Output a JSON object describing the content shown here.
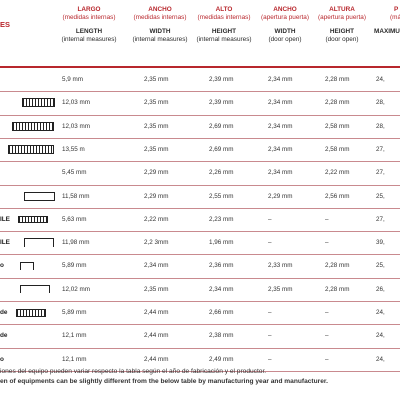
{
  "header": {
    "row_label": "ES",
    "columns": [
      {
        "es": "LARGO",
        "es_sub": "(medidas internas)",
        "en": "LENGTH",
        "en_sub": "(internal measures)"
      },
      {
        "es": "ANCHO",
        "es_sub": "(medidas internas)",
        "en": "WIDTH",
        "en_sub": "(internal measures)"
      },
      {
        "es": "ALTO",
        "es_sub": "(medidas internas)",
        "en": "HEIGHT",
        "en_sub": "(internal measures)"
      },
      {
        "es": "ANCHO",
        "es_sub": "(apertura puerta)",
        "en": "WIDTH",
        "en_sub": "(door open)"
      },
      {
        "es": "ALTURA",
        "es_sub": "(apertura puerta)",
        "en": "HEIGHT",
        "en_sub": "(door open)"
      },
      {
        "es": "P",
        "es_sub": "(má",
        "en": "MAXIMUN",
        "en_sub": ""
      }
    ]
  },
  "rows": [
    {
      "label": "",
      "cells": [
        "5,9 mm",
        "2,35 mm",
        "2,39 mm",
        "2,34 mm",
        "2,28 mm",
        "24,"
      ]
    },
    {
      "label": "",
      "cells": [
        "12,03 mm",
        "2,35 mm",
        "2,39 mm",
        "2,34 mm",
        "2,28 mm",
        "28,"
      ]
    },
    {
      "label": "",
      "cells": [
        "12,03 mm",
        "2,35 mm",
        "2,69 mm",
        "2,34 mm",
        "2,58 mm",
        "28,"
      ]
    },
    {
      "label": "",
      "cells": [
        "13,55 m",
        "2,35 mm",
        "2,69 mm",
        "2,34 mm",
        "2,58 mm",
        "27,"
      ]
    },
    {
      "label": "",
      "cells": [
        "5,45 mm",
        "2,29 mm",
        "2,26 mm",
        "2,34 mm",
        "2,22 mm",
        "27,"
      ]
    },
    {
      "label": "",
      "cells": [
        "11,58 mm",
        "2,29 mm",
        "2,55 mm",
        "2,29 mm",
        "2,56 mm",
        "25,"
      ]
    },
    {
      "label": "ILE",
      "cells": [
        "5,63 mm",
        "2,22 mm",
        "2,23 mm",
        "–",
        "–",
        "27,"
      ]
    },
    {
      "label": "ILE",
      "cells": [
        "11,98 mm",
        "2,2 3mm",
        "1,96 mm",
        "–",
        "–",
        "39,"
      ]
    },
    {
      "label": "o",
      "cells": [
        "5,89 mm",
        "2,34 mm",
        "2,36 mm",
        "2,33 mm",
        "2,28 mm",
        "25,"
      ]
    },
    {
      "label": "",
      "cells": [
        "12,02 mm",
        "2,35 mm",
        "2,34 mm",
        "2,35 mm",
        "2,28 mm",
        "26,"
      ]
    },
    {
      "label": "de",
      "cells": [
        "5,89 mm",
        "2,44 mm",
        "2,66 mm",
        "–",
        "–",
        "24,"
      ]
    },
    {
      "label": "de",
      "cells": [
        "12,1 mm",
        "2,44 mm",
        "2,38 mm",
        "–",
        "–",
        "24,"
      ]
    },
    {
      "label": "o",
      "cells": [
        "12,1 mm",
        "2,44 mm",
        "2,49 mm",
        "–",
        "–",
        "24,"
      ]
    }
  ],
  "footnotes": {
    "es": "iones del equipo pueden variar respecto la tabla según el año de fabricación y el productor.",
    "en": "en of equipments can be slightly different from the below table by manufacturing year and manufacturer."
  }
}
